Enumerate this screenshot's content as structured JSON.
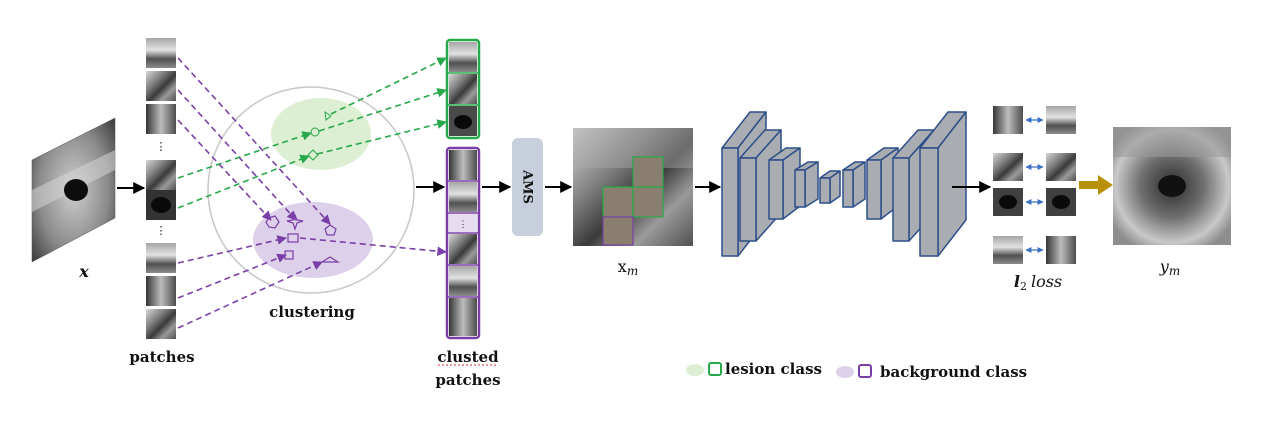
{
  "diagram": {
    "input_label": "x",
    "patches_label": "patches",
    "ellipsis": "⋮",
    "clustering_label": "clustering",
    "clustered_label_line1": "clusted",
    "clustered_label_line2": "patches",
    "ams_label": "AMS",
    "masked_label": "x",
    "masked_sub": "m",
    "loss_label_bold": "l",
    "loss_label_sub": "2",
    "loss_label_rest": "loss",
    "output_label": "y",
    "output_sub": "m",
    "legend": {
      "lesion": "lesion class",
      "background": "background class"
    }
  },
  "colors": {
    "lesion_green": "#27a84a",
    "lesion_fill": "#dcefd3",
    "background_purple": "#7a3fa6",
    "background_fill": "#ddd0ea",
    "ams_box": "#c8cfdc",
    "unet_fill": "#a9adb2",
    "unet_stroke": "#2c4f8a",
    "gold_arrow": "#b8900a",
    "mask_fill": "#8a7f6e"
  }
}
